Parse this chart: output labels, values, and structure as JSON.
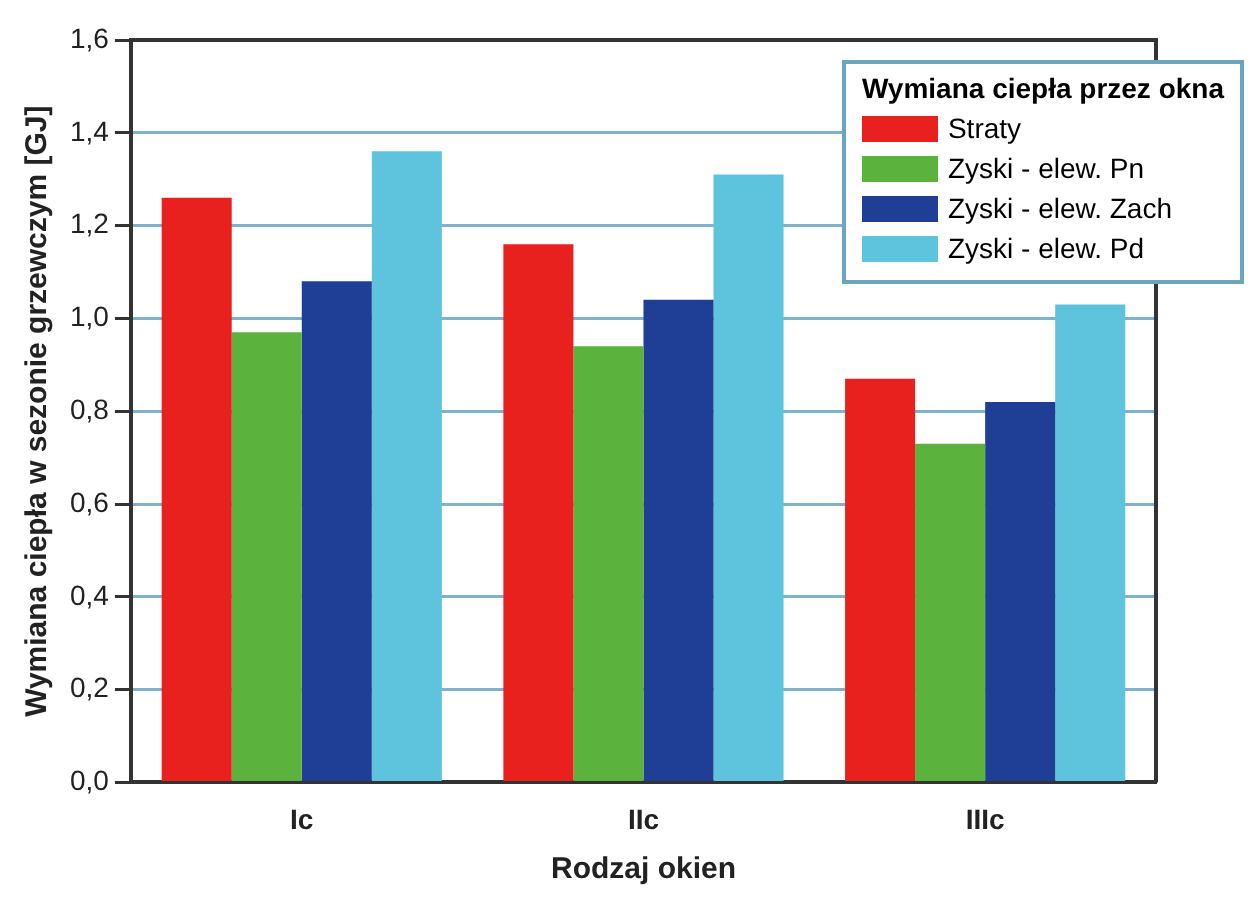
{
  "chart_data": {
    "type": "bar",
    "xlabel": "Rodzaj okien",
    "ylabel": "Wymiana ciepła w sezonie grzewczym [GJ]",
    "legend_title": "Wymiana ciepła przez okna",
    "categories": [
      "Ic",
      "IIc",
      "IIIc"
    ],
    "series": [
      {
        "name": "Straty",
        "color": "#e8211f",
        "values": [
          1.26,
          1.16,
          0.87
        ]
      },
      {
        "name": "Zyski - elew. Pn",
        "color": "#5bb33e",
        "values": [
          0.97,
          0.94,
          0.73
        ]
      },
      {
        "name": "Zyski - elew. Zach",
        "color": "#1f3f96",
        "values": [
          1.08,
          1.04,
          0.82
        ]
      },
      {
        "name": "Zyski - elew. Pd",
        "color": "#5ec3dd",
        "values": [
          1.36,
          1.31,
          1.03
        ]
      }
    ],
    "ylim": [
      0,
      1.6
    ],
    "yticks": [
      {
        "value": 0,
        "label": "0,0"
      },
      {
        "value": 0.2,
        "label": "0,2"
      },
      {
        "value": 0.4,
        "label": "0,4"
      },
      {
        "value": 0.6,
        "label": "0,6"
      },
      {
        "value": 0.8,
        "label": "0,8"
      },
      {
        "value": 1.0,
        "label": "1,0"
      },
      {
        "value": 1.2,
        "label": "1,2"
      },
      {
        "value": 1.4,
        "label": "1,4"
      },
      {
        "value": 1.6,
        "label": "1,6"
      }
    ],
    "grid": "y",
    "legend": "top right"
  }
}
